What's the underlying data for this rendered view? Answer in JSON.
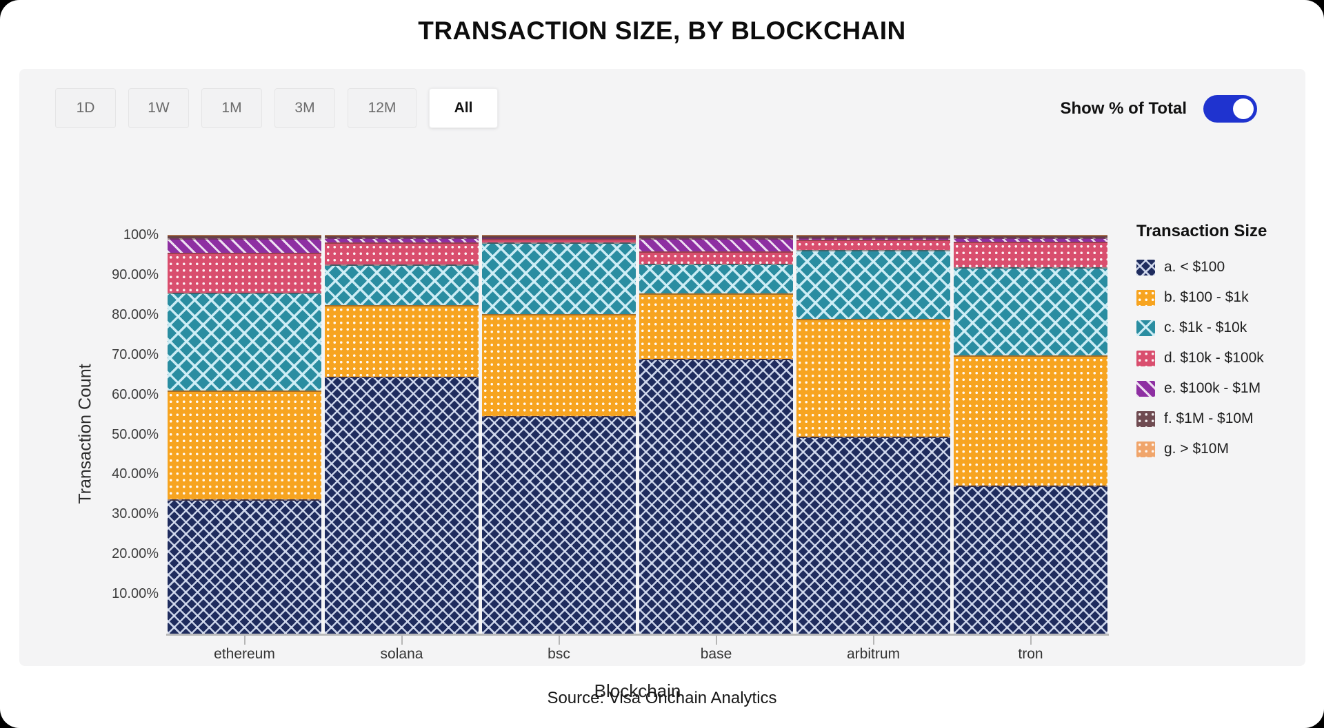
{
  "title": "TRANSACTION SIZE, BY BLOCKCHAIN",
  "controls": {
    "time_buttons": [
      {
        "label": "1D",
        "active": false
      },
      {
        "label": "1W",
        "active": false
      },
      {
        "label": "1M",
        "active": false
      },
      {
        "label": "3M",
        "active": false
      },
      {
        "label": "12M",
        "active": false
      },
      {
        "label": "All",
        "active": true
      }
    ],
    "toggle_label": "Show % of Total",
    "toggle_state": "on",
    "toggle_color": "#1f33cf"
  },
  "chart_data": {
    "type": "bar",
    "stacked": true,
    "normalized_percent": true,
    "title": "TRANSACTION SIZE, BY BLOCKCHAIN",
    "xlabel": "Blockchain",
    "ylabel": "Transaction Count",
    "ylim": [
      0,
      100
    ],
    "grid": false,
    "legend_title": "Transaction Size",
    "legend_position": "right",
    "categories": [
      "ethereum",
      "solana",
      "bsc",
      "base",
      "arbitrum",
      "tron"
    ],
    "y_axis": {
      "ticks": [
        {
          "label": "100%",
          "value": 100
        },
        {
          "label": "90.00%",
          "value": 90
        },
        {
          "label": "80.00%",
          "value": 80
        },
        {
          "label": "70.00%",
          "value": 70
        },
        {
          "label": "60.00%",
          "value": 60
        },
        {
          "label": "50.00%",
          "value": 50
        },
        {
          "label": "40.00%",
          "value": 40
        },
        {
          "label": "30.00%",
          "value": 30
        },
        {
          "label": "20.00%",
          "value": 20
        },
        {
          "label": "10.00%",
          "value": 10
        }
      ]
    },
    "series": [
      {
        "id": "a",
        "name": "a. < $100",
        "color": "#1f2c5e",
        "pattern": "crosshatch",
        "pattern_color": "rgba(216,224,243,0.92)",
        "values": [
          33.7,
          64.7,
          55.0,
          69.0,
          49.6,
          37.2
        ]
      },
      {
        "id": "b",
        "name": "b. $100 - $1k",
        "color": "#f7a420",
        "pattern": "dots",
        "pattern_color": "rgba(255,255,255,0.95)",
        "values": [
          27.3,
          18.0,
          25.7,
          16.5,
          29.7,
          32.8
        ]
      },
      {
        "id": "c",
        "name": "c. $1k - $10k",
        "color": "#2a8da1",
        "pattern": "crosshatch-wide",
        "pattern_color": "rgba(211,240,248,0.95)",
        "values": [
          24.7,
          10.3,
          18.2,
          7.5,
          17.3,
          22.2
        ]
      },
      {
        "id": "d",
        "name": "d. $10k - $100k",
        "color": "#d94e6e",
        "pattern": "dots",
        "pattern_color": "rgba(255,255,255,0.92)",
        "values": [
          10.0,
          5.5,
          0.8,
          3.0,
          2.6,
          6.5
        ]
      },
      {
        "id": "e",
        "name": "e. $100k - $1M",
        "color": "#8e2fa2",
        "pattern": "stripes",
        "pattern_color": "rgba(255,255,255,0.85)",
        "values": [
          3.5,
          1.2,
          0.2,
          3.3,
          0.5,
          1.0
        ]
      },
      {
        "id": "f",
        "name": "f. $1M - $10M",
        "color": "#6f4b51",
        "pattern": "dots",
        "pattern_color": "rgba(255,255,255,0.9)",
        "values": [
          0.6,
          0.2,
          0.07,
          0.55,
          0.2,
          0.2
        ]
      },
      {
        "id": "g",
        "name": "g. > $10M",
        "color": "#f0a56b",
        "pattern": "dots",
        "pattern_color": "rgba(255,255,255,0.9)",
        "values": [
          0.2,
          0.1,
          0.03,
          0.15,
          0.1,
          0.1
        ]
      }
    ]
  },
  "source": "Source: Visa Onchain Analytics"
}
